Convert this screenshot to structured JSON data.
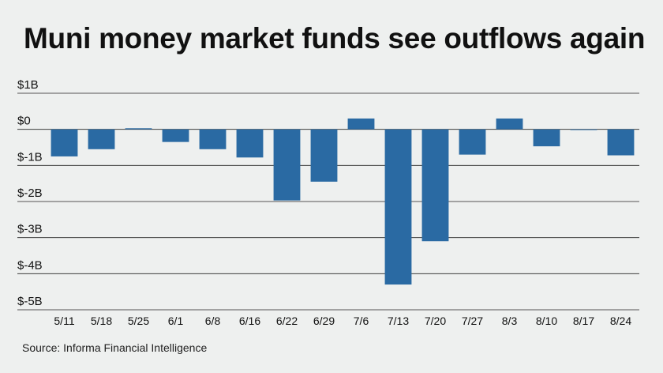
{
  "title": "Muni money market funds see outflows again",
  "source": "Source: Informa Financial Intelligence",
  "colors": {
    "bar": "#2a6aa3",
    "grid": "#222222",
    "background": "#eef0ef"
  },
  "chart_data": {
    "type": "bar",
    "title": "Muni money market funds see outflows again",
    "xlabel": "",
    "ylabel": "",
    "categories": [
      "5/11",
      "5/18",
      "5/25",
      "6/1",
      "6/8",
      "6/16",
      "6/22",
      "6/29",
      "7/6",
      "7/13",
      "7/20",
      "7/27",
      "8/3",
      "8/10",
      "8/17",
      "8/24"
    ],
    "values": [
      -0.75,
      -0.55,
      0.03,
      -0.35,
      -0.55,
      -0.78,
      -1.97,
      -1.45,
      0.3,
      -4.3,
      -3.1,
      -0.7,
      0.3,
      -0.47,
      -0.02,
      -0.72
    ],
    "units": "billions USD",
    "ylim": [
      -5,
      1
    ],
    "yticks": [
      1,
      0,
      -1,
      -2,
      -3,
      -4,
      -5
    ],
    "ytick_labels": [
      "$1B",
      "$0",
      "$-1B",
      "$-2B",
      "$-3B",
      "$-4B",
      "$-5B"
    ],
    "grid": true,
    "legend": "none"
  }
}
